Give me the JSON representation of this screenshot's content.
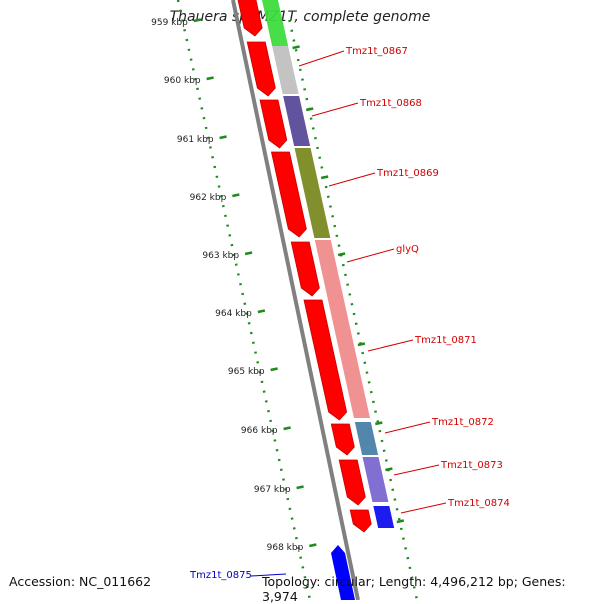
{
  "title": "Thauera sp. MZ1T, complete genome",
  "accession": "Accession: NC_011662",
  "summary": "Topology: circular; Length: 4,496,212 bp; Genes: 3,974",
  "colors": {
    "forward_strand": "#ff0000",
    "label_forward": "#d40000",
    "label_reverse": "#0000cc",
    "backbone": "#808080",
    "ticks": "#1f8a1f"
  },
  "ruler_ticks": [
    "959 kbp",
    "960 kbp",
    "961 kbp",
    "962 kbp",
    "963 kbp",
    "964 kbp",
    "965 kbp",
    "966 kbp",
    "967 kbp",
    "968 kbp"
  ],
  "gene_labels": [
    {
      "id": "Tmz1t_0867",
      "text": "Tmz1t_0867",
      "color": "#d40000"
    },
    {
      "id": "Tmz1t_0868",
      "text": "Tmz1t_0868",
      "color": "#d40000"
    },
    {
      "id": "Tmz1t_0869",
      "text": "Tmz1t_0869",
      "color": "#d40000"
    },
    {
      "id": "glyQ",
      "text": "glyQ",
      "color": "#d40000"
    },
    {
      "id": "Tmz1t_0871",
      "text": "Tmz1t_0871",
      "color": "#d40000"
    },
    {
      "id": "Tmz1t_0872",
      "text": "Tmz1t_0872",
      "color": "#d40000"
    },
    {
      "id": "Tmz1t_0873",
      "text": "Tmz1t_0873",
      "color": "#d40000"
    },
    {
      "id": "Tmz1t_0874",
      "text": "Tmz1t_0874",
      "color": "#d40000"
    },
    {
      "id": "Tmz1t_0875",
      "text": "Tmz1t_0875",
      "color": "#0000cc"
    }
  ],
  "cog_colors": [
    "#3ddc3d",
    "#c0c0c0",
    "#5a4a9a",
    "#7a8a22",
    "#f08c8c",
    "#4a7fa8",
    "#7a68d0",
    "#1010ee"
  ]
}
